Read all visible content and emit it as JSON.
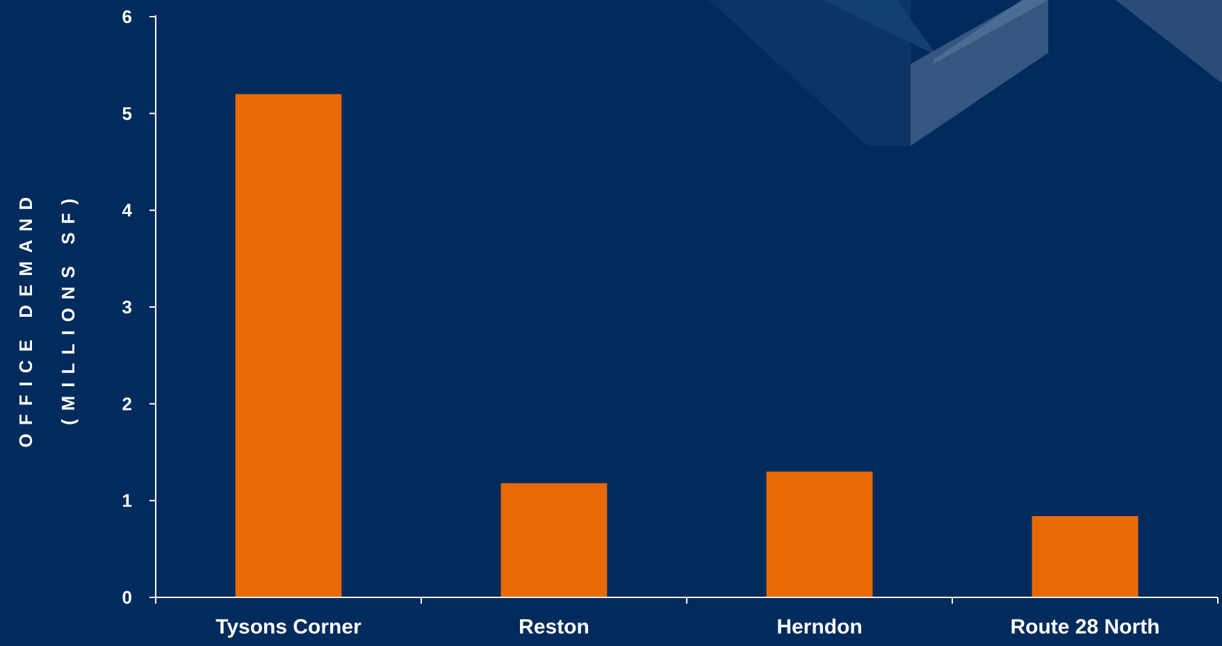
{
  "chart_data": {
    "type": "bar",
    "categories": [
      "Tysons Corner",
      "Reston",
      "Herndon",
      "Route 28 North"
    ],
    "values": [
      5.2,
      1.18,
      1.3,
      0.84
    ],
    "xlabel": "",
    "ylabel": "OFFICE DEMAND (MILLIONS SF)",
    "ylabel_lines": [
      "OFFICE DEMAND",
      "(MILLIONS SF)"
    ],
    "ylim": [
      0,
      6
    ],
    "yticks": [
      0,
      1,
      2,
      3,
      4,
      5,
      6
    ],
    "grid": false,
    "legend": "none",
    "colors": {
      "background": "#002b5c",
      "bar": "#e76a06",
      "axis": "#ffffff",
      "text": "#ffffff",
      "decor": "#34577f"
    }
  }
}
